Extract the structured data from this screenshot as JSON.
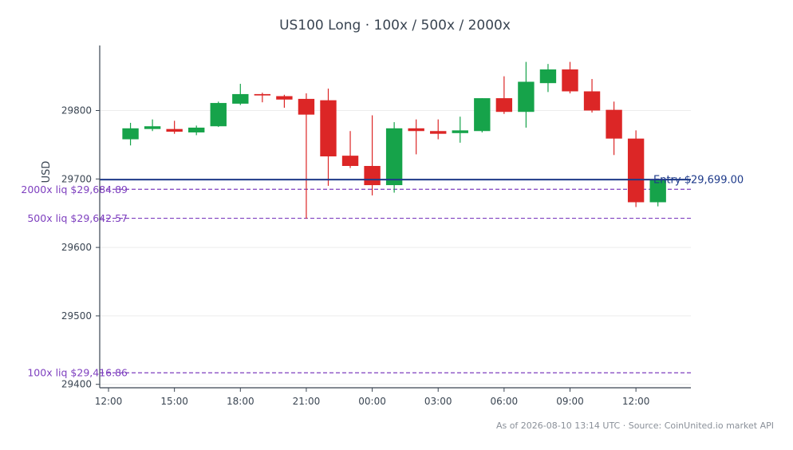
{
  "chart_data": {
    "type": "candlestick",
    "title": "US100 Long · 100x / 500x / 2000x",
    "ylabel": "USD",
    "xlabel": "",
    "ylim": [
      29395,
      29895
    ],
    "yticks": [
      29400,
      29500,
      29600,
      29700,
      29800
    ],
    "xlim": [
      11.6,
      38.5
    ],
    "xticks": [
      {
        "x": 12,
        "label": "12:00"
      },
      {
        "x": 15,
        "label": "15:00"
      },
      {
        "x": 18,
        "label": "18:00"
      },
      {
        "x": 21,
        "label": "21:00"
      },
      {
        "x": 24,
        "label": "00:00"
      },
      {
        "x": 27,
        "label": "03:00"
      },
      {
        "x": 30,
        "label": "06:00"
      },
      {
        "x": 33,
        "label": "09:00"
      },
      {
        "x": 36,
        "label": "12:00"
      }
    ],
    "grid": "horizontal",
    "colors": {
      "up": "#16a34a",
      "down": "#dc2626",
      "entry": "#1e3a8a",
      "liq": "#7e3fbf"
    },
    "candles": [
      {
        "t": 13,
        "o": 29758,
        "h": 29782,
        "l": 29749,
        "c": 29774
      },
      {
        "t": 14,
        "o": 29773,
        "h": 29787,
        "l": 29770,
        "c": 29777
      },
      {
        "t": 15,
        "o": 29773,
        "h": 29785,
        "l": 29766,
        "c": 29769
      },
      {
        "t": 16,
        "o": 29768,
        "h": 29778,
        "l": 29764,
        "c": 29775
      },
      {
        "t": 17,
        "o": 29777,
        "h": 29813,
        "l": 29776,
        "c": 29811
      },
      {
        "t": 18,
        "o": 29810,
        "h": 29839,
        "l": 29808,
        "c": 29824
      },
      {
        "t": 19,
        "o": 29824,
        "h": 29826,
        "l": 29812,
        "c": 29822
      },
      {
        "t": 20,
        "o": 29821,
        "h": 29823,
        "l": 29804,
        "c": 29816
      },
      {
        "t": 21,
        "o": 29817,
        "h": 29825,
        "l": 29642,
        "c": 29794
      },
      {
        "t": 22,
        "o": 29815,
        "h": 29832,
        "l": 29690,
        "c": 29733
      },
      {
        "t": 23,
        "o": 29734,
        "h": 29770,
        "l": 29716,
        "c": 29719
      },
      {
        "t": 24,
        "o": 29719,
        "h": 29793,
        "l": 29676,
        "c": 29691
      },
      {
        "t": 25,
        "o": 29691,
        "h": 29783,
        "l": 29680,
        "c": 29774
      },
      {
        "t": 26,
        "o": 29774,
        "h": 29787,
        "l": 29736,
        "c": 29770
      },
      {
        "t": 27,
        "o": 29770,
        "h": 29787,
        "l": 29758,
        "c": 29766
      },
      {
        "t": 28,
        "o": 29767,
        "h": 29791,
        "l": 29753,
        "c": 29771
      },
      {
        "t": 29,
        "o": 29770,
        "h": 29818,
        "l": 29768,
        "c": 29818
      },
      {
        "t": 30,
        "o": 29818,
        "h": 29850,
        "l": 29795,
        "c": 29798
      },
      {
        "t": 31,
        "o": 29798,
        "h": 29871,
        "l": 29775,
        "c": 29842
      },
      {
        "t": 32,
        "o": 29840,
        "h": 29868,
        "l": 29827,
        "c": 29860
      },
      {
        "t": 33,
        "o": 29860,
        "h": 29871,
        "l": 29825,
        "c": 29828
      },
      {
        "t": 34,
        "o": 29828,
        "h": 29846,
        "l": 29797,
        "c": 29800
      },
      {
        "t": 35,
        "o": 29801,
        "h": 29813,
        "l": 29735,
        "c": 29759
      },
      {
        "t": 36,
        "o": 29759,
        "h": 29771,
        "l": 29659,
        "c": 29666
      },
      {
        "t": 37,
        "o": 29666,
        "h": 29700,
        "l": 29660,
        "c": 29699
      }
    ],
    "entry": {
      "price": 29699.0,
      "label": "Entry $29,699.00"
    },
    "liquidations": [
      {
        "price": 29684.89,
        "label": "2000x liq $29,684.89"
      },
      {
        "price": 29642.57,
        "label": "500x liq $29,642.57"
      },
      {
        "price": 29416.86,
        "label": "100x liq $29,416.86"
      }
    ]
  },
  "footer": "As of 2026-08-10 13:14 UTC · Source: CoinUnited.io market API"
}
